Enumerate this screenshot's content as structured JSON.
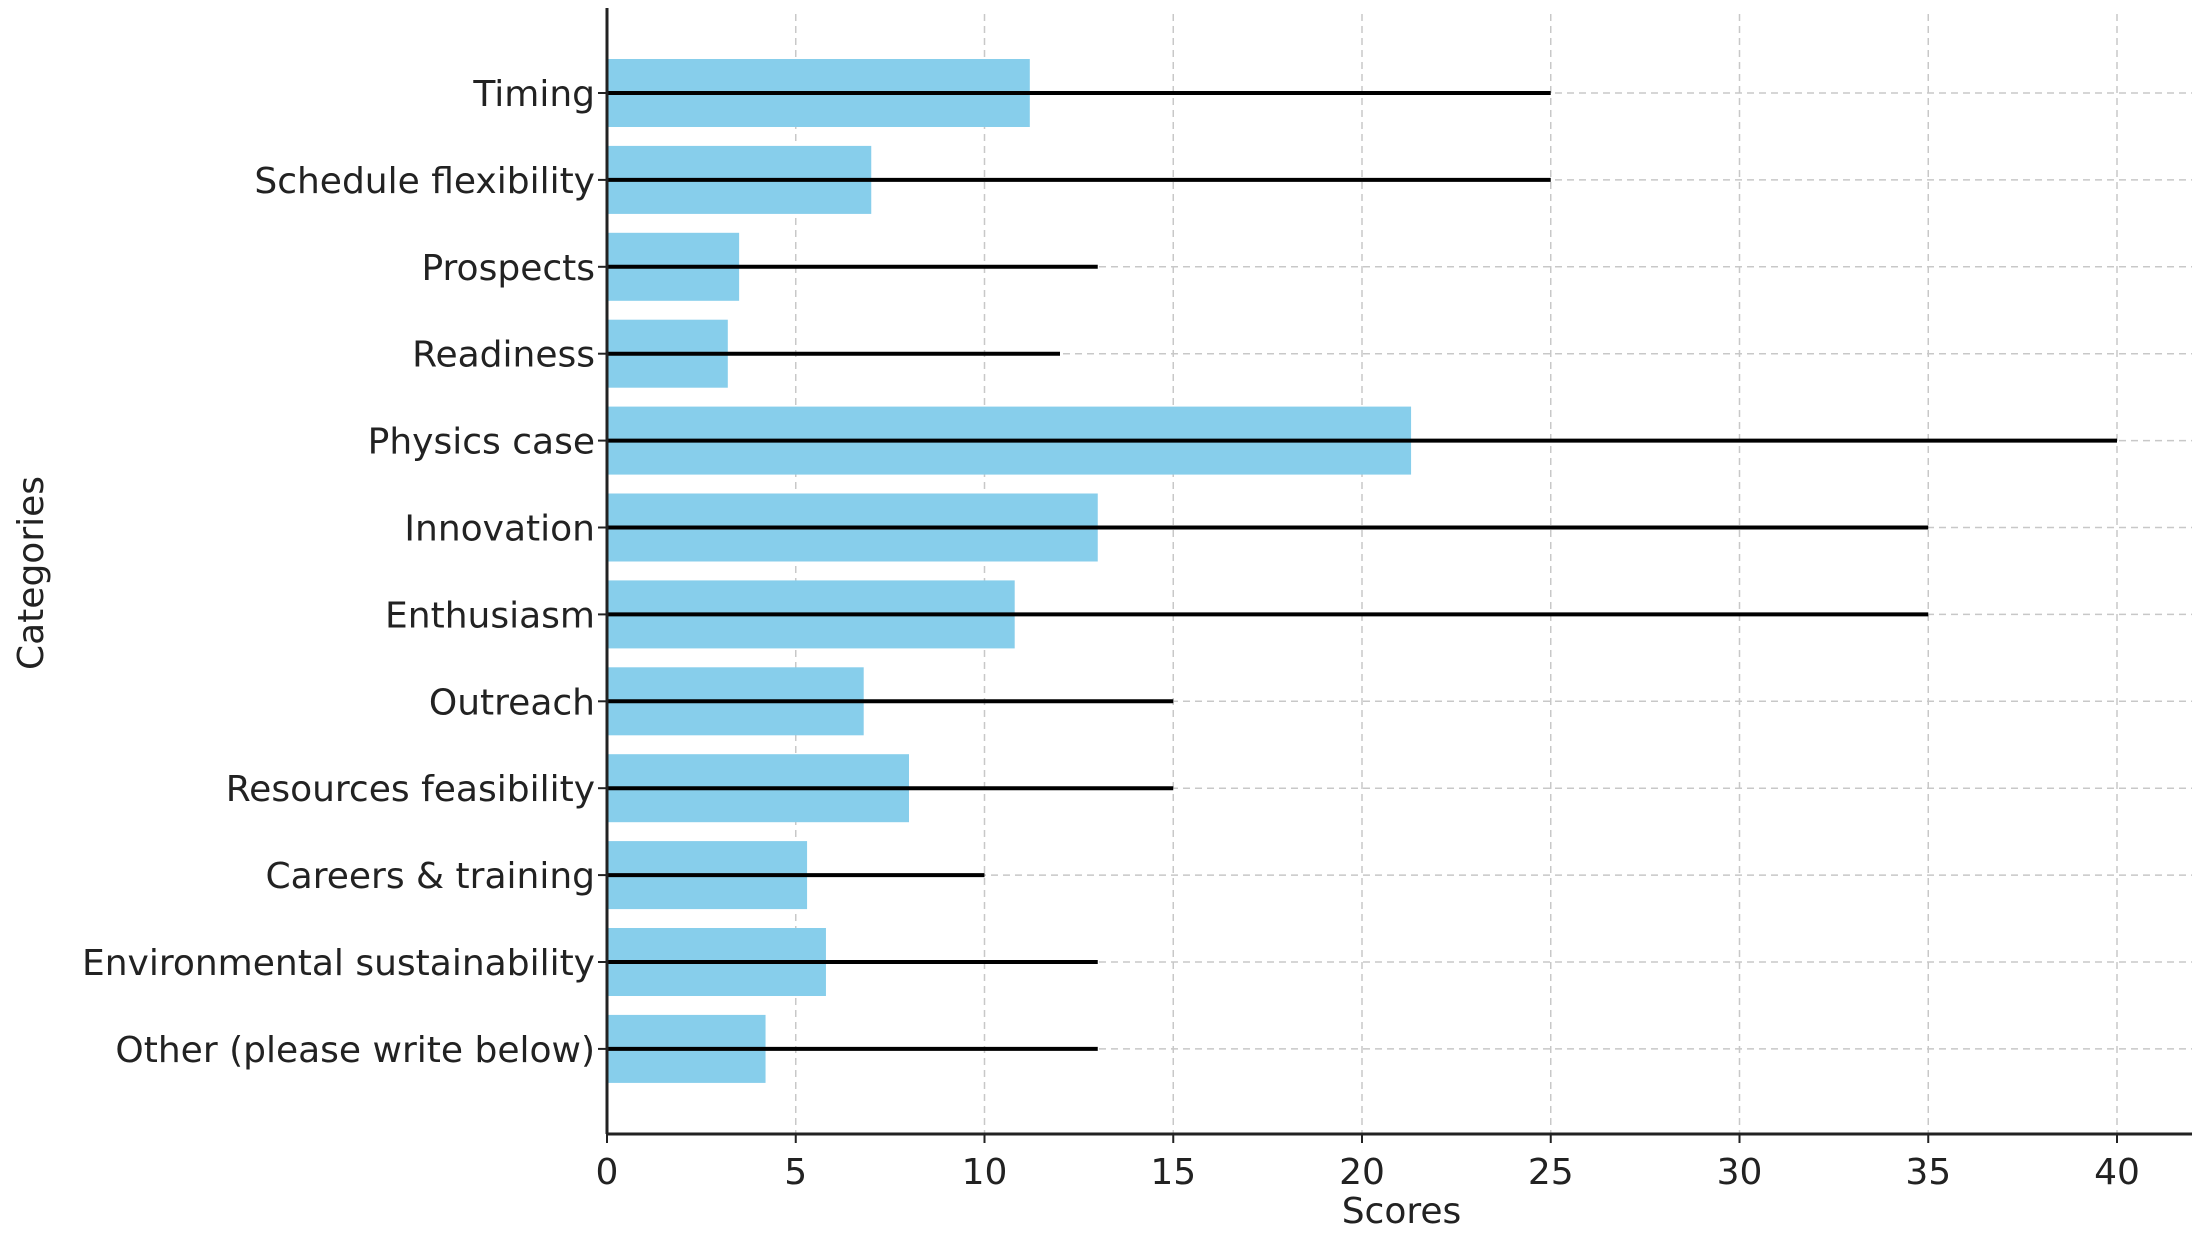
{
  "chart_data": {
    "type": "bar",
    "orientation": "horizontal",
    "title": "",
    "xlabel": "Scores",
    "ylabel": "Categories",
    "xlim": [
      0,
      42.5
    ],
    "xticks": [
      "0",
      "5",
      "10",
      "15",
      "20",
      "25",
      "30",
      "35",
      "40"
    ],
    "grid": true,
    "legend": "none",
    "categories": [
      "Timing",
      "Schedule flexibility",
      "Prospects",
      "Readiness",
      "Physics case",
      "Innovation",
      "Enthusiasm",
      "Outreach",
      "Resources feasibility",
      "Careers & training",
      "Environmental sustainability",
      "Other (please write below)"
    ],
    "values": [
      11.2,
      7.0,
      3.5,
      3.2,
      21.3,
      13.0,
      10.8,
      6.8,
      8.0,
      5.3,
      5.8,
      4.2
    ],
    "line_extent": [
      25,
      25,
      13,
      12,
      40,
      35,
      35,
      15,
      15,
      10,
      13,
      13
    ],
    "colors": {
      "bar": "#87CEEB",
      "line": "#000000",
      "grid": "#c8c8c8",
      "axis": "#222222"
    }
  }
}
